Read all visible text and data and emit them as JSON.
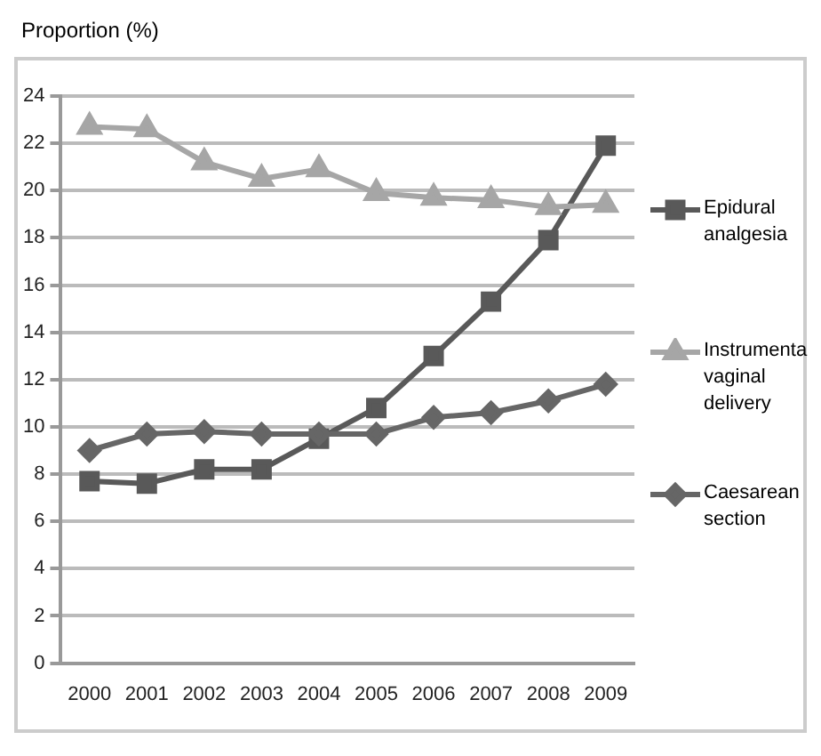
{
  "chart_data": {
    "type": "line",
    "ylabel": "Proportion (%)",
    "categories": [
      "2000",
      "2001",
      "2002",
      "2003",
      "2004",
      "2005",
      "2006",
      "2007",
      "2008",
      "2009"
    ],
    "series": [
      {
        "name": "Epidural analgesia",
        "color": "#595959",
        "marker": "square",
        "values": [
          7.7,
          7.6,
          8.2,
          8.2,
          9.5,
          10.8,
          13.0,
          15.3,
          17.9,
          21.9
        ]
      },
      {
        "name": "Instrumenta vaginal delivery",
        "color": "#a6a6a6",
        "marker": "triangle",
        "values": [
          22.7,
          22.6,
          21.2,
          20.5,
          20.9,
          19.9,
          19.7,
          19.6,
          19.3,
          19.4
        ]
      },
      {
        "name": "Caesarean section",
        "color": "#666666",
        "marker": "diamond",
        "values": [
          9.0,
          9.7,
          9.8,
          9.7,
          9.7,
          9.7,
          10.4,
          10.6,
          11.1,
          11.8
        ]
      }
    ],
    "ylim": [
      0,
      24
    ],
    "yticks": [
      0,
      2,
      4,
      6,
      8,
      10,
      12,
      14,
      16,
      18,
      20,
      22,
      24
    ],
    "grid": "y",
    "legend": "right"
  }
}
